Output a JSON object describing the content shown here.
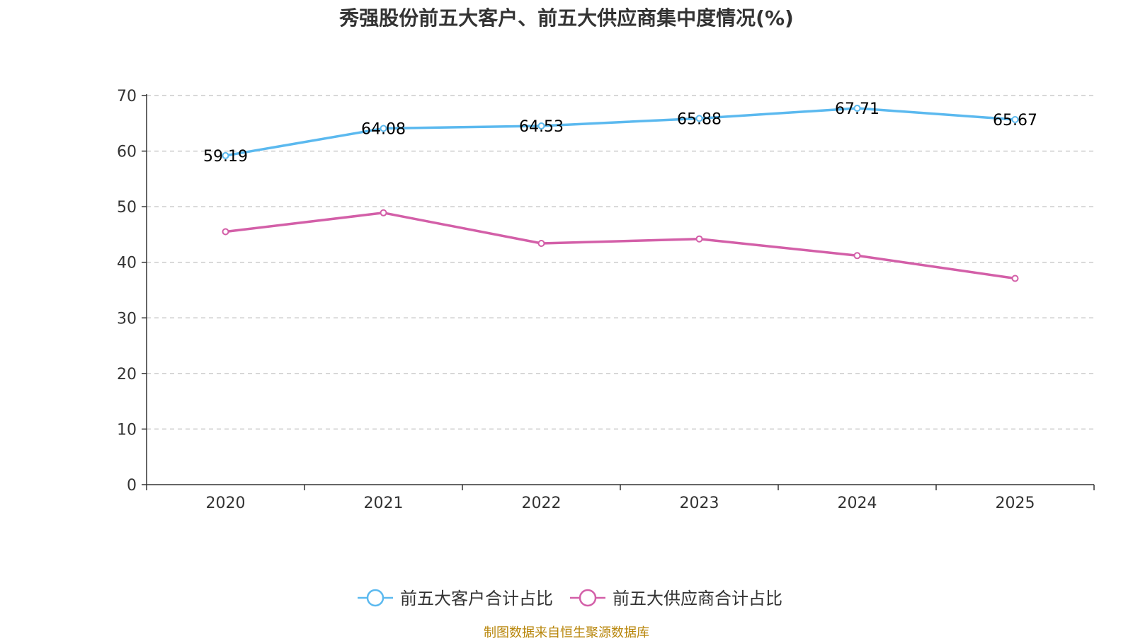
{
  "chart_data": {
    "type": "line",
    "title": "秀强股份前五大客户、前五大供应商集中度情况(%)",
    "categories": [
      "2020",
      "2021",
      "2022",
      "2023",
      "2024",
      "2025"
    ],
    "ylim": [
      0,
      70
    ],
    "yticks": [
      0,
      10,
      20,
      30,
      40,
      50,
      60,
      70
    ],
    "grid": true,
    "legend_position": "bottom-center",
    "series": [
      {
        "name": "前五大客户合计占比",
        "color": "#5bb9ef",
        "values": [
          59.19,
          64.08,
          64.53,
          65.88,
          67.71,
          65.67
        ],
        "labels": [
          "59.19",
          "64.08",
          "64.53",
          "65.88",
          "67.71",
          "65.67"
        ],
        "show_labels": true
      },
      {
        "name": "前五大供应商合计占比",
        "color": "#d35fa8",
        "values": [
          45.5,
          48.9,
          43.4,
          44.2,
          41.2,
          37.1
        ],
        "show_labels": false
      }
    ]
  },
  "source_note": "制图数据来自恒生聚源数据库"
}
